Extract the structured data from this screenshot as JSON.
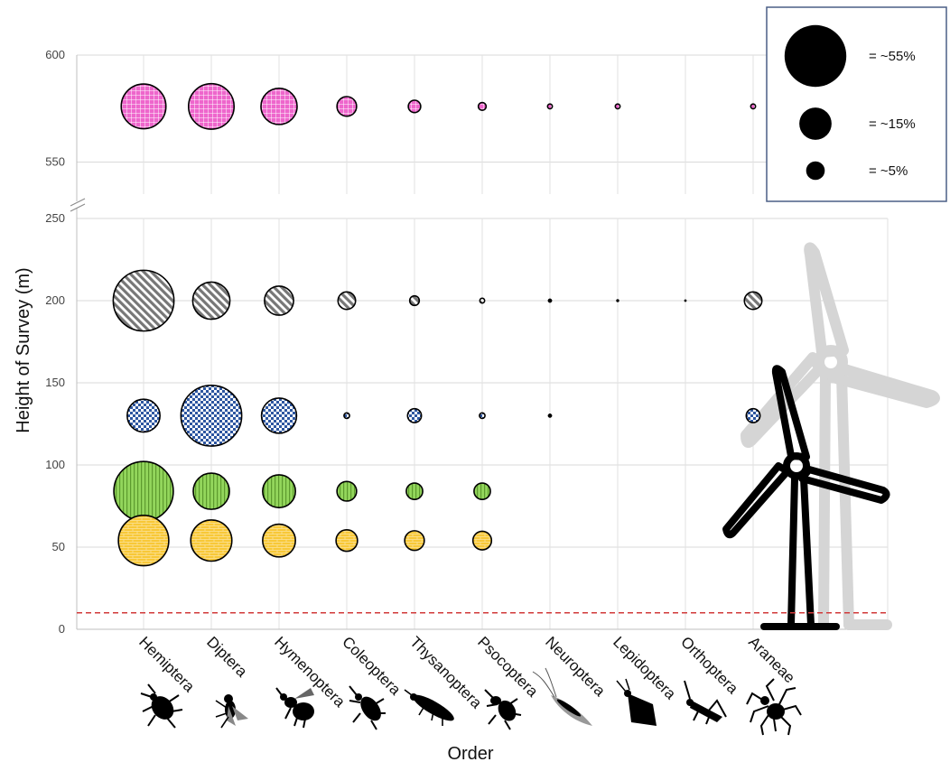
{
  "chart_data": {
    "type": "scatter",
    "xlabel": "Order",
    "ylabel": "Height of Survey (m)",
    "categories": [
      "Hemiptera",
      "Diptera",
      "Hymenoptera",
      "Coleoptera",
      "Thysanoptera",
      "Psocoptera",
      "Neuroptera",
      "Lepidoptera",
      "Orthoptera",
      "Araneae"
    ],
    "y_ticks_lower": [
      0,
      50,
      100,
      150,
      200,
      250
    ],
    "y_ticks_upper": [
      550,
      600
    ],
    "ylim_lower": [
      0,
      250
    ],
    "ylim_upper": [
      535,
      600
    ],
    "broken_axis": true,
    "reference_line_height": 10,
    "reference_line_color": "#d13a3a",
    "grid": true,
    "series": [
      {
        "height": 576,
        "color": "#ee66cc",
        "pattern": "grid",
        "values": [
          26,
          27,
          17,
          5,
          2,
          0.8,
          0.3,
          0.3,
          null,
          0.3
        ]
      },
      {
        "height": 200,
        "color": "#888888",
        "pattern": "diagonal",
        "values": [
          48,
          18,
          11,
          4,
          1.2,
          0.3,
          0.2,
          0.1,
          0.05,
          4
        ]
      },
      {
        "height": 130,
        "color": "#2d56a0",
        "pattern": "checker",
        "values": [
          14,
          48,
          16,
          0.4,
          2.5,
          0.4,
          0.2,
          null,
          null,
          2.5
        ]
      },
      {
        "height": 84,
        "color": "#93d65c",
        "pattern": "vertical",
        "values": [
          46,
          17,
          14,
          5,
          3.5,
          3.5,
          null,
          null,
          null,
          null
        ]
      },
      {
        "height": 54,
        "color": "#f8c837",
        "pattern": "brick",
        "values": [
          33,
          22,
          14,
          6,
          5,
          4.5,
          null,
          null,
          null,
          null
        ]
      }
    ],
    "size_legend": {
      "placement": "top-right",
      "entries": [
        {
          "value": 55,
          "label": "= ~55%"
        },
        {
          "value": 15,
          "label": "= ~15%"
        },
        {
          "value": 5,
          "label": "= ~5%"
        }
      ]
    },
    "icons": [
      "bug-icon",
      "fly-icon",
      "bee-icon",
      "beetle-icon",
      "thrips-icon",
      "booklouse-icon",
      "lacewing-icon",
      "moth-icon",
      "grasshopper-icon",
      "spider-icon"
    ],
    "decoration": "wind-turbine-icon"
  }
}
